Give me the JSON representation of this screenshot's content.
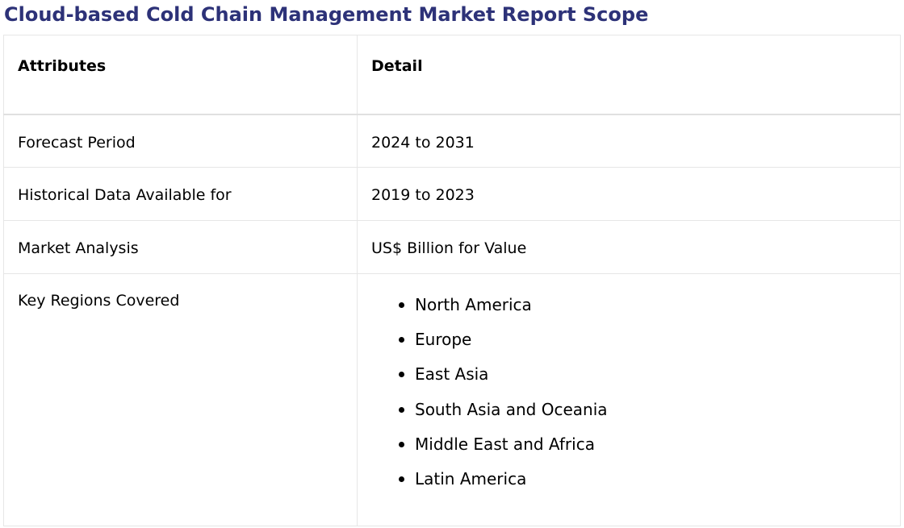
{
  "title": "Cloud-based Cold Chain Management Market Report Scope",
  "colors": {
    "title": "#2d3278",
    "border": "#e6e6e6"
  },
  "table": {
    "headers": [
      "Attributes",
      "Detail"
    ],
    "rows": [
      {
        "attribute": "Forecast Period",
        "detail": "2024 to 2031"
      },
      {
        "attribute": "Historical Data Available for",
        "detail": "2019 to 2023"
      },
      {
        "attribute": "Market Analysis",
        "detail": "US$ Billion for Value"
      }
    ],
    "regions": {
      "attribute": "Key Regions Covered",
      "items": [
        "North America",
        "Europe",
        "East Asia",
        "South Asia and Oceania",
        "Middle East and Africa",
        "Latin America"
      ]
    }
  }
}
